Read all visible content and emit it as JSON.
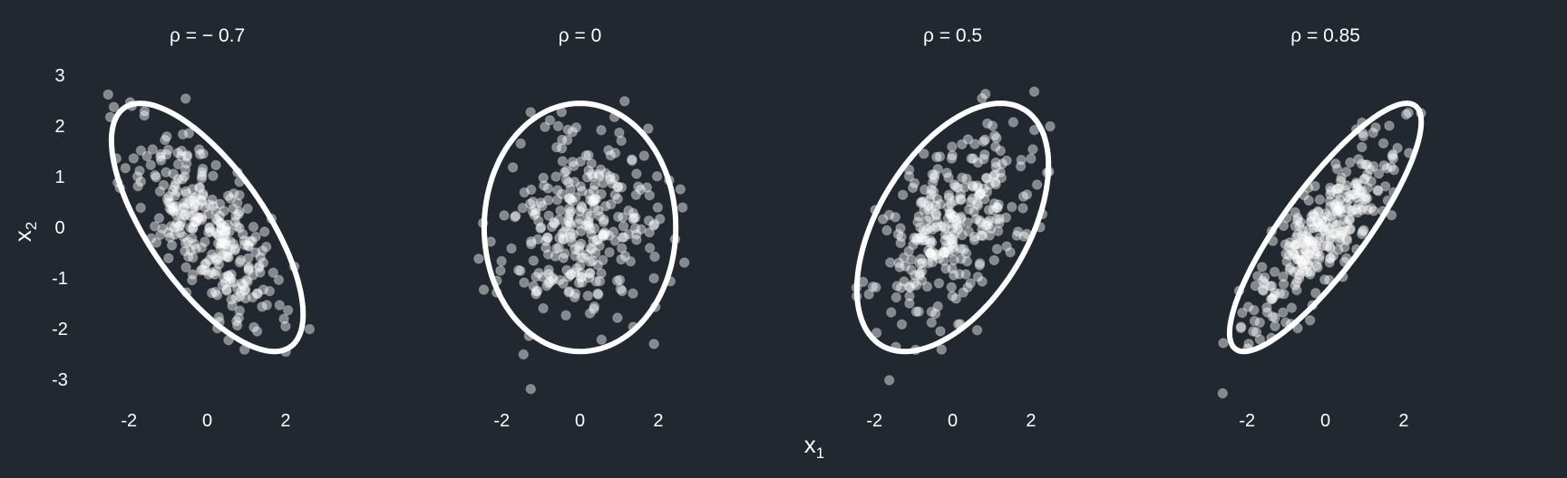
{
  "figure": {
    "background": "#212830",
    "text_color": "#ffffff",
    "point_color": "#ffffff",
    "point_opacity": 0.45,
    "ellipse_color": "#ffffff"
  },
  "chart_data": {
    "type": "scatter",
    "layout": "facets-1x4",
    "shared_y": true,
    "xlabel": "x",
    "xlabel_subscript": "1",
    "ylabel": "x",
    "ylabel_subscript": "2",
    "xlim": [
      -2.7,
      3.6
    ],
    "ylim": [
      -3.3,
      3.2
    ],
    "x_ticks": [
      -2,
      0,
      2
    ],
    "y_ticks": [
      3,
      2,
      1,
      0,
      -1,
      -2,
      -3
    ],
    "y_tick_labels": [
      "3",
      "2",
      "1",
      "0",
      "-1",
      "-2",
      "-3"
    ],
    "grid": false,
    "points_per_panel": 300,
    "panels": [
      {
        "title": "ρ = − 0.7",
        "rho": -0.7,
        "ellipse": {
          "center": [
            0,
            0
          ],
          "sd_x": 1,
          "sd_y": 1,
          "level": 0.95
        }
      },
      {
        "title": "ρ = 0",
        "rho": 0,
        "ellipse": {
          "center": [
            0,
            0
          ],
          "sd_x": 1,
          "sd_y": 1,
          "level": 0.95
        }
      },
      {
        "title": "ρ = 0.5",
        "rho": 0.5,
        "ellipse": {
          "center": [
            0,
            0
          ],
          "sd_x": 1,
          "sd_y": 1,
          "level": 0.95
        }
      },
      {
        "title": "ρ = 0.85",
        "rho": 0.85,
        "ellipse": {
          "center": [
            0,
            0
          ],
          "sd_x": 1,
          "sd_y": 1,
          "level": 0.95
        }
      }
    ]
  }
}
